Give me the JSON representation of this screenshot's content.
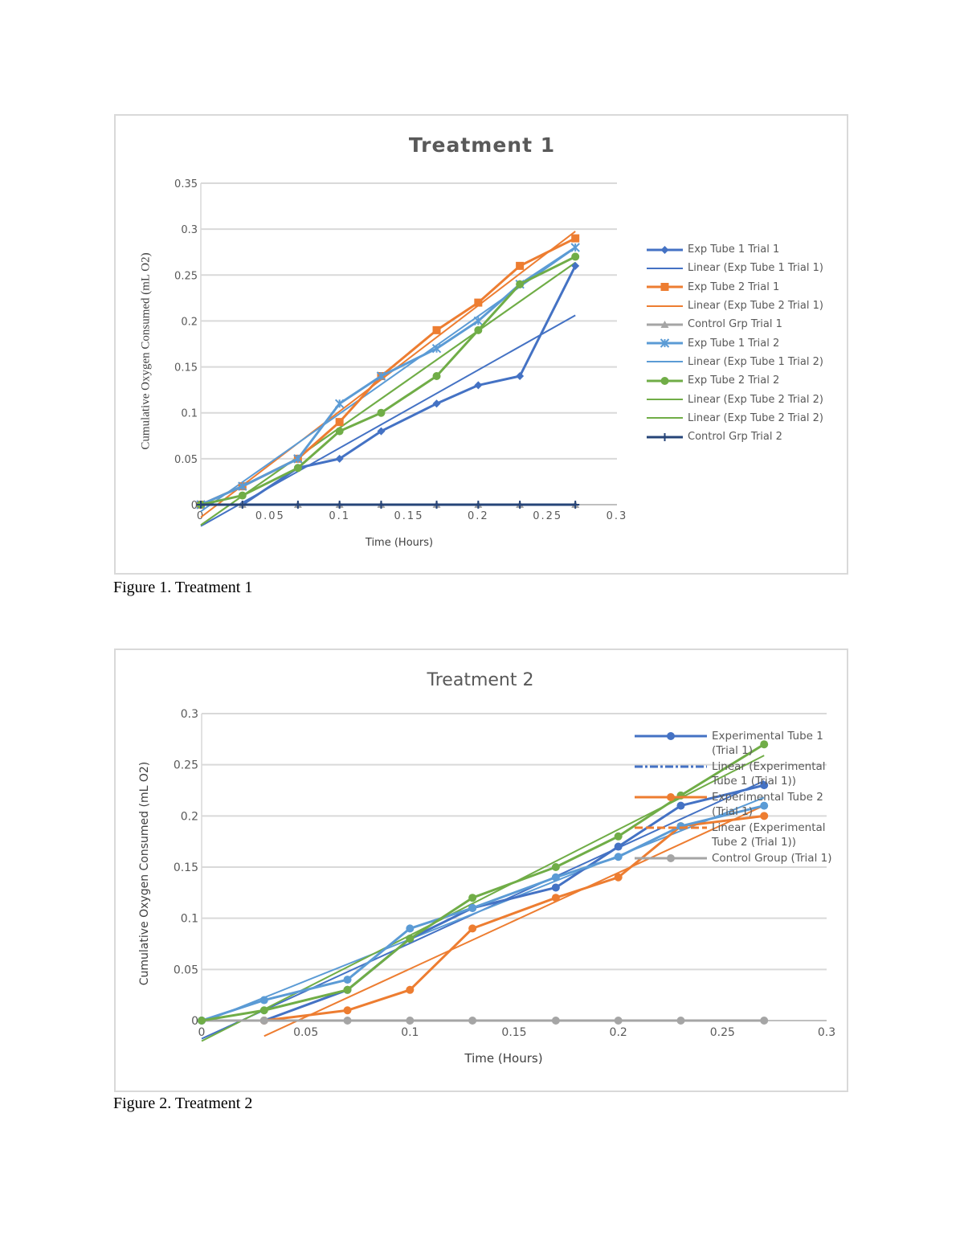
{
  "figures": [
    {
      "caption": "Figure 1. Treatment 1"
    },
    {
      "caption": "Figure 2. Treatment 2"
    }
  ],
  "chart_data": [
    {
      "type": "line",
      "title": "Treatment 1",
      "xlabel": "Time (Hours)",
      "ylabel": "Cumulative Oxygen Consumed (mL O2)",
      "xlim": [
        0,
        0.3
      ],
      "ylim": [
        0,
        0.35
      ],
      "xticks": [
        "0",
        "0.05",
        "0.1",
        "0.15",
        "0.2",
        "0.25",
        "0.3"
      ],
      "yticks": [
        "0",
        "0.05",
        "0.1",
        "0.15",
        "0.2",
        "0.25",
        "0.3",
        "0.35"
      ],
      "grid": true,
      "legend_position": "right",
      "x": [
        0,
        0.03,
        0.07,
        0.1,
        0.13,
        0.17,
        0.2,
        0.23,
        0.27
      ],
      "series": [
        {
          "name": "Exp Tube 1 Trial 1",
          "color": "#4472C4",
          "marker": "diamond",
          "values": [
            0,
            0,
            0.04,
            0.05,
            0.08,
            0.11,
            0.13,
            0.14,
            0.26
          ]
        },
        {
          "name": "Exp Tube 2 Trial 1",
          "color": "#ED7D31",
          "marker": "square",
          "values": [
            0,
            0.02,
            0.05,
            0.09,
            0.14,
            0.19,
            0.22,
            0.26,
            0.29
          ]
        },
        {
          "name": "Control Grp Trial 1",
          "color": "#A5A5A5",
          "marker": "triangle",
          "values": [
            0,
            0,
            0,
            0,
            0,
            0,
            0,
            0,
            0
          ]
        },
        {
          "name": "Exp Tube 1 Trial 2",
          "color": "#5B9BD5",
          "marker": "star",
          "values": [
            0,
            0.02,
            0.05,
            0.11,
            0.14,
            0.17,
            0.2,
            0.24,
            0.28
          ]
        },
        {
          "name": "Exp Tube 2 Trial 2",
          "color": "#70AD47",
          "marker": "circle",
          "values": [
            0,
            0.01,
            0.04,
            0.08,
            0.1,
            0.14,
            0.19,
            0.24,
            0.27
          ]
        },
        {
          "name": "Control Grp Trial 2",
          "color": "#264478",
          "marker": "plus",
          "values": [
            0,
            0,
            0,
            0,
            0,
            0,
            0,
            0,
            0
          ]
        }
      ],
      "trendlines": [
        {
          "name": "Linear (Exp Tube 1 Trial 1)",
          "of": 0,
          "color": "#4472C4"
        },
        {
          "name": "Linear (Exp Tube 2 Trial 1)",
          "of": 1,
          "color": "#ED7D31"
        },
        {
          "name": "Linear (Exp Tube 1 Trial 2)",
          "of": 3,
          "color": "#5B9BD5"
        },
        {
          "name": "Linear (Exp Tube 2 Trial 2)",
          "of": 4,
          "color": "#70AD47"
        },
        {
          "name": "Linear (Exp Tube 2 Trial 2)",
          "of": 4,
          "color": "#70AD47"
        }
      ],
      "legend": [
        {
          "label": "Exp Tube 1 Trial 1",
          "color": "#4472C4",
          "marker": "diamond"
        },
        {
          "label": "Linear (Exp Tube 1 Trial 1)",
          "color": "#4472C4",
          "marker": "none"
        },
        {
          "label": "Exp Tube 2 Trial 1",
          "color": "#ED7D31",
          "marker": "square"
        },
        {
          "label": "Linear (Exp Tube 2 Trial 1)",
          "color": "#ED7D31",
          "marker": "none"
        },
        {
          "label": "Control Grp Trial 1",
          "color": "#A5A5A5",
          "marker": "triangle"
        },
        {
          "label": "Exp Tube 1 Trial 2",
          "color": "#5B9BD5",
          "marker": "star"
        },
        {
          "label": "Linear (Exp Tube 1 Trial 2)",
          "color": "#5B9BD5",
          "marker": "none"
        },
        {
          "label": "Exp Tube 2 Trial 2",
          "color": "#70AD47",
          "marker": "circle"
        },
        {
          "label": "Linear (Exp Tube 2 Trial 2)",
          "color": "#70AD47",
          "marker": "none"
        },
        {
          "label": "Linear (Exp Tube 2 Trial 2)",
          "color": "#70AD47",
          "marker": "none"
        },
        {
          "label": "Control Grp Trial 2",
          "color": "#264478",
          "marker": "plus"
        }
      ]
    },
    {
      "type": "line",
      "title": "Treatment 2",
      "xlabel": "Time (Hours)",
      "ylabel": "Cumulative Oxygen Consumed (mL O2)",
      "xlim": [
        0,
        0.3
      ],
      "ylim": [
        0,
        0.3
      ],
      "xticks": [
        "0",
        "0.05",
        "0.1",
        "0.15",
        "0.2",
        "0.25",
        "0.3"
      ],
      "yticks": [
        "0",
        "0.05",
        "0.1",
        "0.15",
        "0.2",
        "0.25",
        "0.3"
      ],
      "grid": true,
      "legend_position": "right",
      "x": [
        0,
        0.03,
        0.07,
        0.1,
        0.13,
        0.17,
        0.2,
        0.23,
        0.27
      ],
      "series": [
        {
          "name": "Experimental Tube 1 (Trial 1)",
          "color": "#4472C4",
          "marker": "circle",
          "values": [
            0,
            0,
            0.03,
            0.08,
            0.11,
            0.13,
            0.17,
            0.21,
            0.23
          ]
        },
        {
          "name": "Experimental Tube 2 (Trial 1)",
          "color": "#ED7D31",
          "marker": "circle",
          "values": [
            null,
            0,
            0.01,
            0.03,
            0.09,
            0.12,
            0.14,
            0.19,
            0.2
          ]
        },
        {
          "name": "Control Group (Trial 1)",
          "color": "#A5A5A5",
          "marker": "circle",
          "values": [
            0,
            0,
            0,
            0,
            0,
            0,
            0,
            0,
            0
          ]
        },
        {
          "color": "#5B9BD5",
          "marker": "circle",
          "values": [
            0,
            0.02,
            0.04,
            0.09,
            0.11,
            0.14,
            0.16,
            0.19,
            0.21
          ]
        },
        {
          "color": "#70AD47",
          "marker": "circle",
          "values": [
            0,
            0.01,
            0.03,
            0.08,
            0.12,
            0.15,
            0.18,
            0.22,
            0.27
          ]
        }
      ],
      "trendlines": [
        {
          "name": "Linear (Experimental Tube 1 (Trial 1))",
          "of": 0,
          "color": "#4472C4"
        },
        {
          "name": "Linear (Experimental Tube 2 (Trial 1))",
          "of": 1,
          "color": "#ED7D31"
        },
        {
          "of": 3,
          "color": "#5B9BD5"
        },
        {
          "of": 4,
          "color": "#70AD47"
        }
      ],
      "legend": [
        {
          "label": "Experimental Tube 1 (Trial 1)",
          "color": "#4472C4",
          "marker": "circle"
        },
        {
          "label": "Linear (Experimental Tube 1 (Trial 1))",
          "color": "#4472C4",
          "marker": "dashdot"
        },
        {
          "label": "Experimental Tube 2 (Trial 1)",
          "color": "#ED7D31",
          "marker": "circle"
        },
        {
          "label": "Linear (Experimental Tube 2 (Trial 1))",
          "color": "#ED7D31",
          "marker": "dash"
        },
        {
          "label": "Control Group (Trial 1)",
          "color": "#A5A5A5",
          "marker": "circle"
        }
      ]
    }
  ]
}
